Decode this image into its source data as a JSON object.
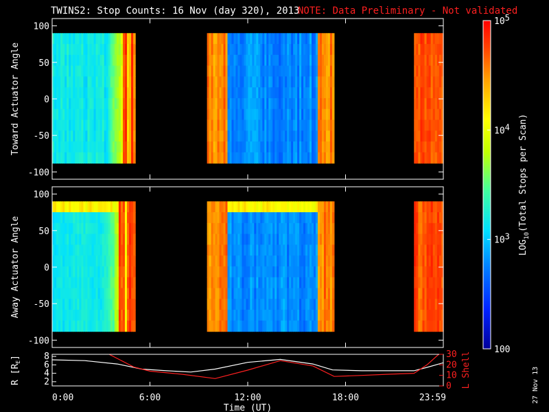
{
  "title": "TWINS2: Stop Counts: 16 Nov (day 320), 2013",
  "note": "NOTE: Data Preliminary - Not validated",
  "datestamp": "27 Nov 13",
  "colors": {
    "note": "#ff2020",
    "r_line": "#ffffff",
    "lshell_line": "#ff2020"
  },
  "colorbar": {
    "label_prefix": "LOG",
    "label_sub": "10",
    "label_suffix": "(Total Stops per Scan)",
    "ticks": [
      {
        "value": 100,
        "base": "100",
        "exp": ""
      },
      {
        "value": 1000,
        "base": "10",
        "exp": "3"
      },
      {
        "value": 10000,
        "base": "10",
        "exp": "4"
      },
      {
        "value": 100000,
        "base": "10",
        "exp": "5"
      }
    ],
    "range": [
      100,
      100000
    ],
    "scale": "log"
  },
  "chart_data": [
    {
      "type": "heatmap",
      "name": "toward",
      "ylabel": "Toward Actuator Angle",
      "xlabel": "",
      "xlim": [
        0,
        24
      ],
      "ylim": [
        -110,
        110
      ],
      "yticks": [
        100,
        50,
        0,
        -50,
        -100
      ],
      "data_ylim": [
        -88,
        90
      ],
      "data_intervals": [
        [
          0,
          5.1
        ],
        [
          9.5,
          17.3
        ],
        [
          22.2,
          24
        ]
      ],
      "colorscale": "rainbow-log"
    },
    {
      "type": "heatmap",
      "name": "away",
      "ylabel": "Away Actuator Angle",
      "xlabel": "",
      "xlim": [
        0,
        24
      ],
      "ylim": [
        -110,
        110
      ],
      "yticks": [
        100,
        50,
        0,
        -50,
        -100
      ],
      "data_ylim": [
        -88,
        90
      ],
      "data_intervals": [
        [
          0,
          5.1
        ],
        [
          9.5,
          17.3
        ],
        [
          22.2,
          24
        ]
      ],
      "colorscale": "rainbow-log"
    },
    {
      "type": "line",
      "name": "ephemeris",
      "xlabel": "Time (UT)",
      "ylabel_left": "R [R",
      "ylabel_left_sub": "E",
      "ylabel_left_end": "]",
      "ylabel_right": "L Shell",
      "xlim": [
        0,
        24
      ],
      "ylim_left": [
        1,
        8.5
      ],
      "ylim_right": [
        0,
        30
      ],
      "yticks_left": [
        "8",
        "6",
        "4",
        "2"
      ],
      "yticks_right": [
        "30",
        "20",
        "10",
        "0"
      ],
      "xticks": [
        "0:00",
        "6:00",
        "12:00",
        "18:00",
        "23:59"
      ],
      "series": [
        {
          "key": "r",
          "axis": "left",
          "x": [
            0,
            2,
            4,
            5.5,
            7,
            8.5,
            10,
            12,
            14,
            16,
            17.2,
            19,
            20.5,
            22.2,
            23,
            24
          ],
          "y": [
            7.2,
            7.0,
            6.2,
            5.0,
            4.6,
            4.3,
            5.0,
            6.6,
            7.3,
            6.2,
            4.8,
            4.6,
            4.6,
            4.6,
            5.4,
            6.5
          ]
        },
        {
          "key": "lshell",
          "axis": "right",
          "x": [
            3.5,
            4,
            5,
            6,
            8,
            10,
            12,
            14,
            16,
            17.3,
            19,
            20.5,
            22.2,
            23,
            24
          ],
          "y": [
            30,
            26,
            18,
            14,
            11,
            7,
            15,
            24,
            19,
            9,
            10,
            11,
            12,
            20,
            34
          ]
        }
      ]
    }
  ]
}
